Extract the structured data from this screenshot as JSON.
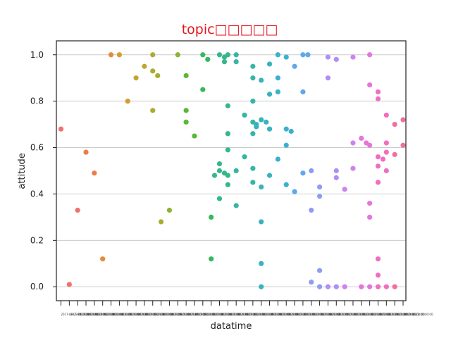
{
  "chart_data": {
    "type": "scatter",
    "title": "topic□□□□□",
    "xlabel": "datatime",
    "ylabel": "attitude",
    "ylim": [
      -0.06,
      1.06
    ],
    "y_ticks": [
      "0.0",
      "0.2",
      "0.4",
      "0.6",
      "0.8",
      "1.0"
    ],
    "y_tick_values": [
      0.0,
      0.2,
      0.4,
      0.6,
      0.8,
      1.0
    ],
    "grid": "horizontal",
    "x_tick_count": 42,
    "x_tick_label_text": "2017-08-23 00:00:00",
    "colors": [
      "#f0716c",
      "#ee7b4b",
      "#e6893a",
      "#d69a35",
      "#c2a531",
      "#a8ad31",
      "#8cb334",
      "#5ab836",
      "#36b95d",
      "#35b78b",
      "#36b5a6",
      "#38b3bd",
      "#3cafd2",
      "#5fa8ec",
      "#8e9cf3",
      "#b08ef4",
      "#cd83ee",
      "#e576d8",
      "#f16ebf",
      "#f06f9f"
    ],
    "series": [
      {
        "x": 0,
        "y": [
          0.68
        ]
      },
      {
        "x": 1,
        "y": [
          0.01
        ]
      },
      {
        "x": 2,
        "y": [
          0.33
        ]
      },
      {
        "x": 3,
        "y": [
          0.58
        ]
      },
      {
        "x": 4,
        "y": [
          0.49
        ]
      },
      {
        "x": 5,
        "y": [
          0.12
        ]
      },
      {
        "x": 6,
        "y": [
          1.0
        ]
      },
      {
        "x": 7,
        "y": [
          1.0
        ]
      },
      {
        "x": 8,
        "y": [
          0.8
        ]
      },
      {
        "x": 9,
        "y": [
          0.9
        ]
      },
      {
        "x": 10,
        "y": [
          0.95
        ]
      },
      {
        "x": 11,
        "y": [
          1.0,
          0.93,
          0.91,
          0.76
        ]
      },
      {
        "x": 12,
        "y": [
          0.28
        ]
      },
      {
        "x": 13,
        "y": [
          0.33
        ]
      },
      {
        "x": 14,
        "y": [
          1.0
        ]
      },
      {
        "x": 15,
        "y": [
          0.91,
          0.76,
          0.71
        ]
      },
      {
        "x": 16,
        "y": [
          0.65
        ]
      },
      {
        "x": 17,
        "y": [
          1.0,
          0.98,
          0.85
        ]
      },
      {
        "x": 18,
        "y": [
          0.3,
          0.12
        ]
      },
      {
        "x": 19,
        "y": [
          1.0,
          0.99,
          0.97,
          0.53,
          0.5,
          0.49,
          0.48,
          0.38
        ]
      },
      {
        "x": 20,
        "y": [
          1.0,
          0.78,
          0.66,
          0.59,
          0.48,
          0.44
        ]
      },
      {
        "x": 21,
        "y": [
          1.0,
          0.97,
          0.5,
          0.35
        ]
      },
      {
        "x": 22,
        "y": [
          0.74,
          0.56
        ]
      },
      {
        "x": 23,
        "y": [
          0.95,
          0.9,
          0.8,
          0.71,
          0.66,
          0.51,
          0.45
        ]
      },
      {
        "x": 24,
        "y": [
          0.89,
          0.72,
          0.71,
          0.7,
          0.69,
          0.43,
          0.28,
          0.1,
          0.0
        ]
      },
      {
        "x": 25,
        "y": [
          0.96,
          0.83,
          0.68,
          0.48
        ]
      },
      {
        "x": 26,
        "y": [
          1.0,
          0.9,
          0.84,
          0.55
        ]
      },
      {
        "x": 27,
        "y": [
          0.99,
          0.68,
          0.67,
          0.61,
          0.44
        ]
      },
      {
        "x": 28,
        "y": [
          0.95,
          0.41
        ]
      },
      {
        "x": 29,
        "y": [
          1.0,
          1.0,
          0.84,
          0.49
        ]
      },
      {
        "x": 30,
        "y": [
          0.5,
          0.33,
          0.02
        ]
      },
      {
        "x": 31,
        "y": [
          0.43,
          0.39,
          0.07,
          0.0
        ]
      },
      {
        "x": 32,
        "y": [
          0.99,
          0.9,
          0.0
        ]
      },
      {
        "x": 33,
        "y": [
          0.98,
          0.5,
          0.47,
          0.0
        ]
      },
      {
        "x": 34,
        "y": [
          0.42,
          0.0
        ]
      },
      {
        "x": 35,
        "y": [
          0.99,
          0.62,
          0.51
        ]
      },
      {
        "x": 36,
        "y": [
          0.64,
          0.62,
          0.0
        ]
      },
      {
        "x": 37,
        "y": [
          1.0,
          0.87,
          0.61,
          0.36,
          0.3,
          0.0
        ]
      },
      {
        "x": 38,
        "y": [
          0.84,
          0.81,
          0.56,
          0.55,
          0.52,
          0.45,
          0.12,
          0.05,
          0.0
        ]
      },
      {
        "x": 39,
        "y": [
          0.74,
          0.62,
          0.58,
          0.5,
          0.0
        ]
      },
      {
        "x": 40,
        "y": [
          0.7,
          0.57,
          0.0
        ]
      },
      {
        "x": 41,
        "y": [
          0.72,
          0.61
        ]
      }
    ]
  }
}
